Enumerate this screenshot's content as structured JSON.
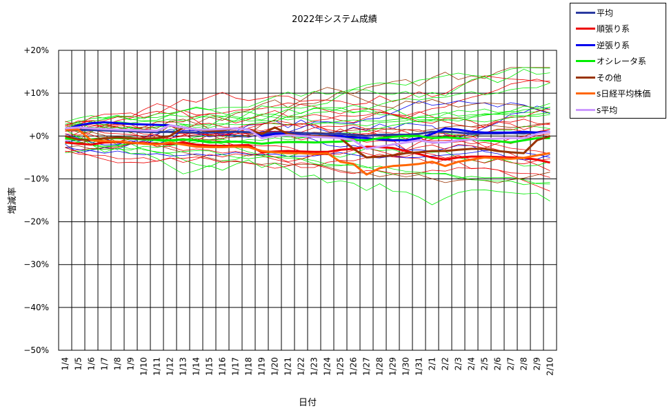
{
  "chart_data": {
    "type": "line",
    "title": "2022年システム成績",
    "xlabel": "日付",
    "ylabel": "増減率",
    "categories": [
      "1/4",
      "1/5",
      "1/6",
      "1/7",
      "1/8",
      "1/9",
      "1/10",
      "1/11",
      "1/12",
      "1/13",
      "1/14",
      "1/15",
      "1/16",
      "1/17",
      "1/18",
      "1/19",
      "1/20",
      "1/21",
      "1/22",
      "1/23",
      "1/24",
      "1/25",
      "1/26",
      "1/27",
      "1/28",
      "1/29",
      "1/30",
      "1/31",
      "2/1",
      "2/2",
      "2/3",
      "2/4",
      "2/5",
      "2/6",
      "2/7",
      "2/8",
      "2/9",
      "2/10"
    ],
    "yticks": [
      "+20%",
      "+10%",
      "+0%",
      "−10%",
      "−20%",
      "−30%",
      "−40%",
      "−50%"
    ],
    "ylim": [
      -50,
      20
    ],
    "grid": true,
    "legend_position": "right-top",
    "series": [
      {
        "name": "平均",
        "color": "#2a3aa0",
        "values": [
          1.5,
          1.4,
          1.4,
          1.3,
          1.2,
          1.1,
          1.0,
          0.9,
          1.0,
          0.9,
          0.8,
          0.8,
          0.9,
          1.0,
          0.9,
          0.5,
          0.8,
          0.8,
          0.7,
          0.6,
          0.5,
          0.5,
          0.3,
          0.0,
          0.3,
          0.3,
          0.3,
          0.5,
          1.0,
          1.0,
          0.8,
          0.5,
          0.6,
          0.6,
          0.7,
          0.6,
          0.8,
          1.0
        ]
      },
      {
        "name": "順張り系",
        "color": "#ee0000",
        "values": [
          -1.5,
          -1.8,
          -2.0,
          -1.5,
          -1.4,
          -1.6,
          -1.7,
          -1.8,
          -1.9,
          -1.5,
          -2.0,
          -2.2,
          -2.3,
          -2.2,
          -2.1,
          -3.8,
          -3.6,
          -3.5,
          -3.6,
          -3.7,
          -3.7,
          -3.2,
          -3.0,
          -2.5,
          -2.6,
          -2.8,
          -3.5,
          -4.2,
          -5.0,
          -5.5,
          -5.0,
          -4.8,
          -4.8,
          -4.9,
          -5.0,
          -5.1,
          -5.5,
          -6.2
        ]
      },
      {
        "name": "逆張り系",
        "color": "#0000ee",
        "values": [
          1.5,
          2.5,
          3.0,
          3.2,
          3.0,
          2.8,
          2.7,
          2.6,
          2.5,
          2.0,
          1.5,
          1.4,
          1.5,
          1.8,
          1.5,
          0.0,
          0.5,
          0.5,
          0.2,
          0.0,
          0.0,
          0.0,
          -0.3,
          -0.5,
          -0.8,
          -1.0,
          -1.0,
          -0.5,
          0.5,
          1.8,
          1.5,
          1.0,
          0.8,
          0.8,
          0.8,
          1.0,
          0.8,
          1.0
        ]
      },
      {
        "name": "オシレータ系",
        "color": "#00ee00",
        "values": [
          -0.5,
          -0.8,
          -0.8,
          -0.5,
          -0.5,
          -0.6,
          -0.8,
          -0.9,
          -1.0,
          -0.8,
          -1.0,
          -1.5,
          -1.4,
          -1.3,
          -1.5,
          -1.8,
          -1.5,
          -1.4,
          -1.4,
          -1.5,
          -1.4,
          -1.3,
          -1.0,
          -1.0,
          -0.5,
          -0.2,
          0.0,
          0.0,
          -0.5,
          -0.3,
          -0.5,
          -0.8,
          -1.0,
          -1.2,
          -1.5,
          -1.0,
          -0.5,
          -0.5
        ]
      },
      {
        "name": "その他",
        "color": "#993300",
        "values": [
          0.0,
          -0.8,
          -1.0,
          -0.5,
          -0.3,
          -0.5,
          -0.6,
          -0.5,
          0.0,
          2.0,
          1.5,
          1.2,
          1.3,
          1.8,
          1.5,
          0.5,
          2.0,
          0.5,
          0.0,
          0.0,
          -0.1,
          -0.5,
          -3.0,
          -5.0,
          -4.8,
          -4.5,
          -4.0,
          -3.8,
          -3.5,
          -3.5,
          -3.2,
          -3.0,
          -3.0,
          -3.5,
          -3.8,
          -4.0,
          -1.0,
          0.0
        ]
      },
      {
        "name": "s日経平均株価",
        "color": "#ff6600",
        "values": [
          1.5,
          1.5,
          -1.0,
          -1.2,
          -1.3,
          -1.5,
          -1.8,
          -2.0,
          -1.5,
          -2.0,
          -2.5,
          -2.6,
          -2.6,
          -2.5,
          -2.6,
          -3.5,
          -3.8,
          -4.0,
          -4.0,
          -4.2,
          -4.0,
          -6.0,
          -6.5,
          -9.0,
          -7.5,
          -7.0,
          -6.8,
          -6.5,
          -6.0,
          -7.0,
          -6.0,
          -5.5,
          -5.0,
          -5.2,
          -5.3,
          -5.1,
          -4.5,
          -4.0
        ]
      },
      {
        "name": "s平均",
        "color": "#cc99ff",
        "values": [
          1.8,
          2.0,
          1.8,
          1.6,
          1.5,
          1.4,
          1.3,
          1.2,
          2.5,
          2.0,
          1.5,
          1.5,
          1.6,
          1.8,
          1.5,
          -0.5,
          0.0,
          0.2,
          0.0,
          -0.2,
          -0.3,
          -0.5,
          -1.0,
          -3.0,
          -2.5,
          -2.0,
          -1.5,
          -1.0,
          -1.5,
          -1.5,
          -1.0,
          -0.8,
          -0.7,
          -0.6,
          -0.5,
          -0.5,
          0.5,
          1.0
        ]
      }
    ]
  }
}
